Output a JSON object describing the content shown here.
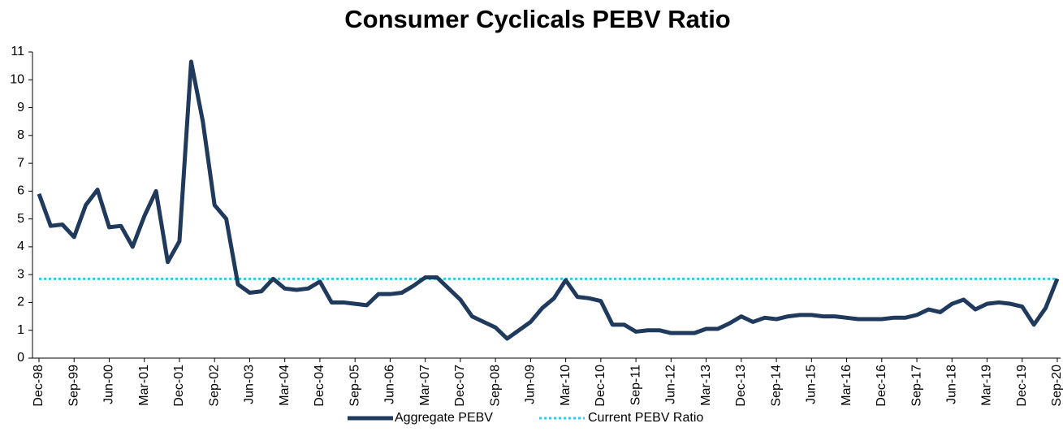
{
  "chart_data": {
    "type": "line",
    "title": "Consumer Cyclicals PEBV Ratio",
    "categories": [
      "Dec-98",
      null,
      null,
      "Sep-99",
      null,
      null,
      "Jun-00",
      null,
      null,
      "Mar-01",
      null,
      null,
      "Dec-01",
      null,
      null,
      "Sep-02",
      null,
      null,
      "Jun-03",
      null,
      null,
      "Mar-04",
      null,
      null,
      "Dec-04",
      null,
      null,
      "Sep-05",
      null,
      null,
      "Jun-06",
      null,
      null,
      "Mar-07",
      null,
      null,
      "Dec-07",
      null,
      null,
      "Sep-08",
      null,
      null,
      "Jun-09",
      null,
      null,
      "Mar-10",
      null,
      null,
      "Dec-10",
      null,
      null,
      "Sep-11",
      null,
      null,
      "Jun-12",
      null,
      null,
      "Mar-13",
      null,
      null,
      "Dec-13",
      null,
      null,
      "Sep-14",
      null,
      null,
      "Jun-15",
      null,
      null,
      "Mar-16",
      null,
      null,
      "Dec-16",
      null,
      null,
      "Sep-17",
      null,
      null,
      "Jun-18",
      null,
      null,
      "Mar-19",
      null,
      null,
      "Dec-19",
      null,
      null,
      "Sep-20"
    ],
    "series": [
      {
        "name": "Aggregate PEBV",
        "color": "#1f3a5c",
        "values": [
          5.9,
          4.75,
          4.8,
          4.35,
          5.5,
          6.05,
          4.7,
          4.75,
          4.0,
          5.1,
          6.0,
          3.45,
          4.2,
          10.65,
          8.5,
          5.5,
          5.0,
          2.65,
          2.35,
          2.4,
          2.85,
          2.5,
          2.45,
          2.5,
          2.75,
          2.0,
          2.0,
          1.95,
          1.9,
          2.3,
          2.3,
          2.35,
          2.6,
          2.9,
          2.9,
          2.5,
          2.1,
          1.5,
          1.3,
          1.1,
          0.7,
          1.0,
          1.3,
          1.8,
          2.15,
          2.8,
          2.2,
          2.15,
          2.05,
          1.2,
          1.2,
          0.95,
          1.0,
          1.0,
          0.9,
          0.9,
          0.9,
          1.05,
          1.05,
          1.25,
          1.5,
          1.3,
          1.45,
          1.4,
          1.5,
          1.55,
          1.55,
          1.5,
          1.5,
          1.45,
          1.4,
          1.4,
          1.4,
          1.45,
          1.45,
          1.55,
          1.75,
          1.65,
          1.95,
          2.1,
          1.75,
          1.95,
          2.0,
          1.95,
          1.85,
          1.2,
          1.8,
          2.85
        ]
      }
    ],
    "reference_line": {
      "name": "Current PEBV Ratio",
      "value": 2.85,
      "color": "#3ec6e8"
    },
    "ylim": [
      0,
      11
    ],
    "yticks": [
      0,
      1,
      2,
      3,
      4,
      5,
      6,
      7,
      8,
      9,
      10,
      11
    ],
    "grid": false,
    "legend": "bottom"
  }
}
